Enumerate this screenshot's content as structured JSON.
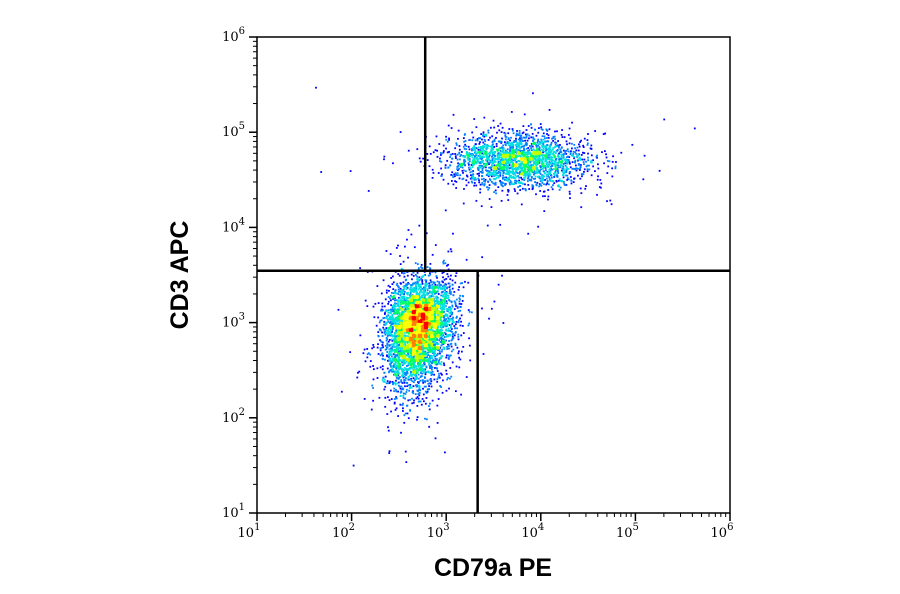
{
  "chart_data": {
    "type": "scatter",
    "subtype": "flow-cytometry-density-dot-plot",
    "xlabel": "CD79a PE",
    "ylabel": "CD3 APC",
    "xscale": "log",
    "yscale": "log",
    "xlim": [
      10,
      1000000
    ],
    "ylim": [
      10,
      1000000
    ],
    "x_ticks": [
      {
        "base": "10",
        "exp": "1",
        "value": 10
      },
      {
        "base": "10",
        "exp": "2",
        "value": 100
      },
      {
        "base": "10",
        "exp": "3",
        "value": 1000
      },
      {
        "base": "10",
        "exp": "4",
        "value": 10000
      },
      {
        "base": "10",
        "exp": "5",
        "value": 100000
      },
      {
        "base": "10",
        "exp": "6",
        "value": 1000000
      }
    ],
    "y_ticks": [
      {
        "base": "10",
        "exp": "1",
        "value": 10
      },
      {
        "base": "10",
        "exp": "2",
        "value": 100
      },
      {
        "base": "10",
        "exp": "3",
        "value": 1000
      },
      {
        "base": "10",
        "exp": "4",
        "value": 10000
      },
      {
        "base": "10",
        "exp": "5",
        "value": 100000
      },
      {
        "base": "10",
        "exp": "6",
        "value": 1000000
      }
    ],
    "grid": false,
    "quadrant_gates": {
      "horizontal_y": 3500,
      "upper_vertical_x": 600,
      "lower_vertical_x": 2150
    },
    "populations": [
      {
        "quadrant": "lower-left",
        "center_x": 500,
        "center_y": 900,
        "spread_log_x": 0.17,
        "spread_log_y": 0.24,
        "approx_events": 4500
      },
      {
        "quadrant": "upper-right",
        "center_x": 6000,
        "center_y": 50000,
        "spread_log_x": 0.36,
        "spread_log_y": 0.14,
        "approx_events": 2200
      }
    ],
    "density_colors": [
      "#0000ff",
      "#0080ff",
      "#00e0e0",
      "#00ff60",
      "#c0ff00",
      "#ffff00",
      "#ff8000",
      "#ff0000"
    ]
  }
}
